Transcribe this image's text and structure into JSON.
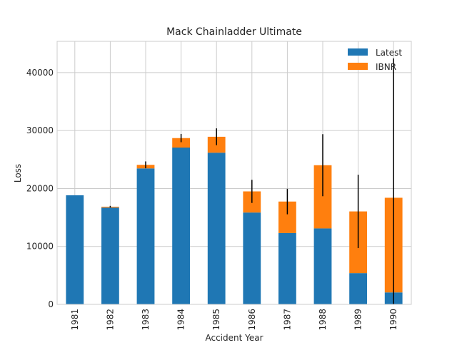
{
  "chart_data": {
    "type": "bar",
    "stacked": true,
    "title": "Mack Chainladder Ultimate",
    "xlabel": "Accident Year",
    "ylabel": "Loss",
    "categories": [
      "1981",
      "1982",
      "1983",
      "1984",
      "1985",
      "1986",
      "1987",
      "1988",
      "1989",
      "1990"
    ],
    "series": [
      {
        "name": "Latest",
        "color": "#1f77b4",
        "values": [
          18834,
          16704,
          23466,
          27067,
          26180,
          15852,
          12314,
          13112,
          5395,
          2063
        ]
      },
      {
        "name": "IBNR",
        "color": "#ff7f0e",
        "values": [
          0,
          154,
          617,
          1636,
          2747,
          3649,
          5435,
          10907,
          10650,
          16339
        ]
      }
    ],
    "error_bars": {
      "color": "#000000",
      "values": [
        0,
        143,
        592,
        712,
        1452,
        1995,
        2204,
        5354,
        6332,
        24068
      ]
    },
    "yticks": [
      0,
      10000,
      20000,
      30000,
      40000
    ],
    "ylim": [
      0,
      45400
    ],
    "grid": true,
    "legend": "top-right"
  }
}
